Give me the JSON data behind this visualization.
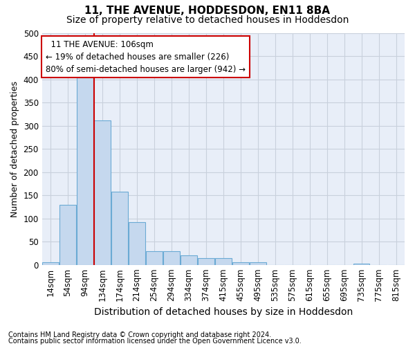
{
  "title1": "11, THE AVENUE, HODDESDON, EN11 8BA",
  "title2": "Size of property relative to detached houses in Hoddesdon",
  "xlabel": "Distribution of detached houses by size in Hoddesdon",
  "ylabel": "Number of detached properties",
  "footnote1": "Contains HM Land Registry data © Crown copyright and database right 2024.",
  "footnote2": "Contains public sector information licensed under the Open Government Licence v3.0.",
  "categories": [
    "14sqm",
    "54sqm",
    "94sqm",
    "134sqm",
    "174sqm",
    "214sqm",
    "254sqm",
    "294sqm",
    "334sqm",
    "374sqm",
    "415sqm",
    "455sqm",
    "495sqm",
    "535sqm",
    "575sqm",
    "615sqm",
    "655sqm",
    "695sqm",
    "735sqm",
    "775sqm",
    "815sqm"
  ],
  "bar_values": [
    6,
    130,
    408,
    312,
    158,
    92,
    30,
    30,
    20,
    15,
    15,
    6,
    6,
    0,
    0,
    0,
    0,
    0,
    3,
    0,
    0
  ],
  "bar_color": "#c5d8ee",
  "bar_edge_color": "#6aaad4",
  "red_line_x": 2.5,
  "annotation_line1": "  11 THE AVENUE: 106sqm",
  "annotation_line2": "← 19% of detached houses are smaller (226)",
  "annotation_line3": "80% of semi-detached houses are larger (942) →",
  "annotation_box_color": "#ffffff",
  "annotation_box_edge": "#cc0000",
  "ylim": [
    0,
    500
  ],
  "yticks": [
    0,
    50,
    100,
    150,
    200,
    250,
    300,
    350,
    400,
    450,
    500
  ],
  "grid_color": "#c8d0dc",
  "background_color": "#e8eef8",
  "title1_fontsize": 11,
  "title2_fontsize": 10,
  "xlabel_fontsize": 10,
  "ylabel_fontsize": 9,
  "tick_fontsize": 8.5,
  "annot_fontsize": 8.5,
  "footnote_fontsize": 7
}
